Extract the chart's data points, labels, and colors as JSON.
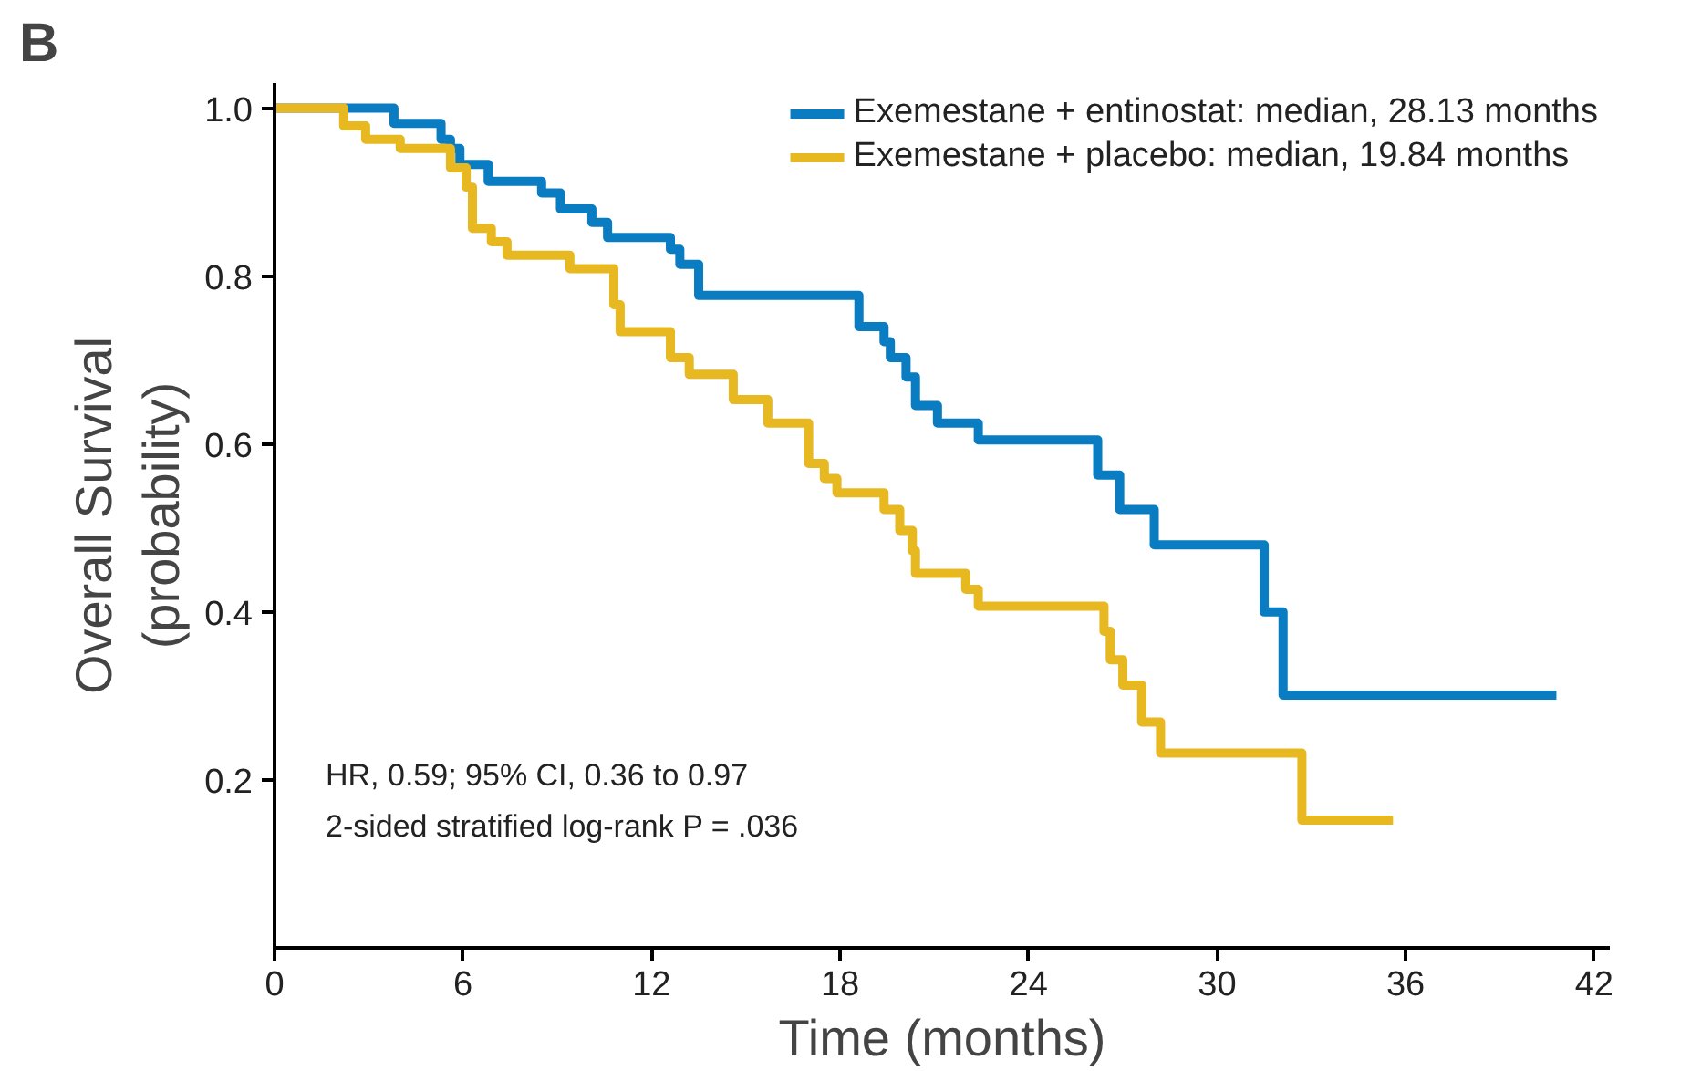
{
  "chart_data": {
    "type": "step",
    "title": "B",
    "xlabel": "Time (months)",
    "ylabel": "Overall Survival\n(probability)",
    "xlim": [
      0,
      42.5
    ],
    "xticks": [
      0,
      6,
      12,
      18,
      24,
      30,
      36,
      42
    ],
    "ylim": [
      0,
      1.03
    ],
    "yticks": [
      {
        "value": 0.2,
        "label": "0.2"
      },
      {
        "value": 0.4,
        "label": "0.4"
      },
      {
        "value": 0.6,
        "label": "0.6"
      },
      {
        "value": 0.8,
        "label": "0.8"
      },
      {
        "value": 1.0,
        "label": "1.0"
      }
    ],
    "grid": false,
    "legend": "top right",
    "line_style": "solid",
    "annotations": [
      "HR, 0.59; 95% CI, 0.36 to 0.97",
      "2-sided stratified log-rank P = .036"
    ],
    "series": [
      {
        "name": "Exemestane + entinostat: median, 28.13 months",
        "color": "#0a7cc1",
        "x": [
          0,
          3.8,
          5.3,
          5.6,
          5.9,
          6.8,
          8.5,
          9.1,
          10.1,
          10.6,
          12.6,
          12.9,
          13.5,
          18.6,
          19.4,
          19.6,
          20.1,
          20.4,
          21.1,
          22.4,
          26.2,
          26.9,
          28.0,
          31.5,
          32.1,
          40.8
        ],
        "values": [
          1.0,
          0.982,
          0.963,
          0.952,
          0.933,
          0.913,
          0.899,
          0.88,
          0.864,
          0.846,
          0.832,
          0.814,
          0.777,
          0.74,
          0.722,
          0.703,
          0.68,
          0.646,
          0.625,
          0.605,
          0.563,
          0.522,
          0.48,
          0.4,
          0.301,
          0.301
        ]
      },
      {
        "name": "Exemestane + placebo: median, 19.84 months",
        "color": "#e8b820",
        "x": [
          0,
          2.2,
          2.9,
          4.0,
          5.6,
          6.1,
          6.3,
          6.9,
          7.4,
          9.4,
          10.8,
          11.0,
          12.6,
          13.2,
          14.6,
          15.7,
          17.0,
          17.5,
          17.9,
          19.4,
          19.9,
          20.3,
          20.4,
          22.0,
          22.4,
          26.4,
          26.6,
          27.0,
          27.6,
          28.2,
          32.7,
          35.6
        ],
        "values": [
          1.0,
          0.979,
          0.963,
          0.952,
          0.929,
          0.906,
          0.857,
          0.841,
          0.825,
          0.809,
          0.766,
          0.734,
          0.703,
          0.683,
          0.653,
          0.625,
          0.577,
          0.559,
          0.542,
          0.522,
          0.497,
          0.473,
          0.446,
          0.427,
          0.407,
          0.377,
          0.343,
          0.313,
          0.269,
          0.232,
          0.152,
          0.152
        ]
      }
    ]
  }
}
